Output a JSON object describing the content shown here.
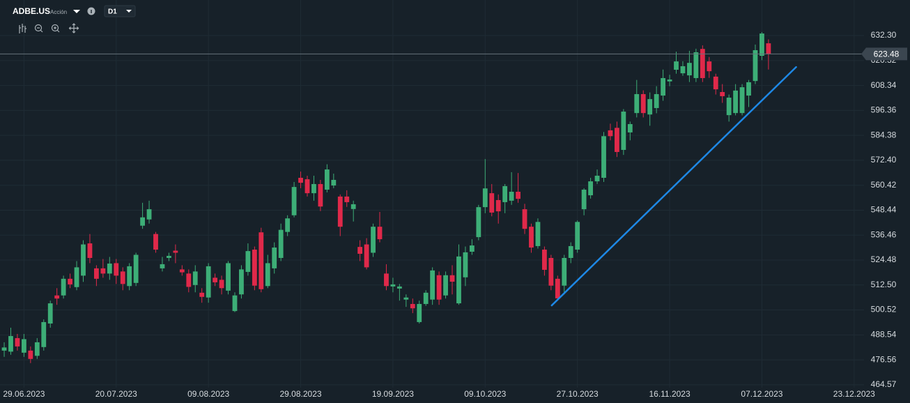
{
  "header": {
    "symbol": "ADBE.US",
    "kind": "Acción",
    "timeframe": "D1"
  },
  "chart_data": {
    "type": "candlestick",
    "categories": [
      null,
      null,
      null,
      "29.06.2023",
      null,
      null,
      null,
      null,
      null,
      null,
      null,
      null,
      null,
      null,
      null,
      null,
      null,
      "20.07.2023",
      null,
      null,
      null,
      null,
      null,
      null,
      null,
      null,
      null,
      null,
      null,
      null,
      null,
      "09.08.2023",
      null,
      null,
      null,
      null,
      null,
      null,
      null,
      null,
      null,
      null,
      null,
      null,
      null,
      "29.08.2023",
      null,
      null,
      null,
      null,
      null,
      null,
      null,
      null,
      null,
      null,
      null,
      null,
      null,
      "19.09.2023",
      null,
      null,
      null,
      null,
      null,
      null,
      null,
      null,
      null,
      null,
      null,
      null,
      null,
      "09.10.2023",
      null,
      null,
      null,
      null,
      null,
      null,
      null,
      null,
      null,
      null,
      null,
      null,
      null,
      "27.10.2023",
      null,
      null,
      null,
      null,
      null,
      null,
      null,
      null,
      null,
      null,
      null,
      null,
      null,
      "16.11.2023",
      null,
      null,
      null,
      null,
      null,
      null,
      null,
      null,
      null,
      null,
      null,
      null,
      null,
      "07.12.2023",
      null,
      null,
      null,
      null,
      null,
      null,
      null,
      null,
      null,
      null,
      null,
      null,
      null,
      "23.12.2023",
      null
    ],
    "open": [
      481,
      480.5,
      487,
      480,
      481,
      478.5,
      482.7,
      494,
      507.5,
      507.5,
      515.5,
      511.5,
      517,
      532.5,
      520.5,
      520.5,
      518,
      523,
      519,
      512,
      513.5,
      541,
      544,
      537,
      520.5,
      525.5,
      529,
      520,
      518,
      512.5,
      508.8,
      506.5,
      516,
      515,
      509.8,
      500,
      508,
      518.8,
      529.5,
      537.8,
      512,
      520.5,
      525.5,
      538,
      546,
      564,
      563.3,
      556.6,
      561,
      558.3,
      560.3,
      555,
      555,
      549,
      530.8,
      532,
      528,
      540.5,
      518,
      511.8,
      510.8,
      505.5,
      503.4,
      494.7,
      503.4,
      505.5,
      517.2,
      507.5,
      517.2,
      503.7,
      516.2,
      528.5,
      535.5,
      549.9,
      556.6,
      553.3,
      552.3,
      553,
      557.3,
      548.9,
      540.5,
      531.2,
      529.5,
      525.5,
      515.5,
      512.2,
      525.5,
      529.5,
      548.9,
      555.6,
      562.3,
      564,
      586.8,
      588,
      577.4,
      585.8,
      595.1,
      604.2,
      594.4,
      597.5,
      603.5,
      610.3,
      615.9,
      614.2,
      613.2,
      611.9,
      625.9,
      619.9,
      612.6,
      605.2,
      594.1,
      595.1,
      595.1,
      603.5,
      610.5,
      622.6,
      628.6,
      null,
      null,
      null,
      null,
      null,
      null,
      null,
      null,
      null,
      null,
      null,
      null,
      null,
      null
    ],
    "high": [
      485,
      492,
      489,
      489,
      483,
      487,
      496,
      505,
      511,
      517,
      518,
      524,
      534,
      537,
      522,
      525,
      526,
      525,
      521,
      523,
      528,
      552,
      553,
      538,
      526,
      528,
      532,
      522,
      520,
      522,
      511,
      523,
      518,
      517,
      524,
      509,
      522,
      532.5,
      531,
      540,
      527,
      533,
      542,
      546,
      562,
      567,
      565,
      565,
      563,
      570.5,
      566,
      556,
      558,
      553,
      534,
      535,
      542,
      547.6,
      522.5,
      516,
      513,
      508,
      506,
      505,
      510,
      521,
      519,
      519,
      522,
      532,
      531,
      534.5,
      551,
      573,
      561,
      556,
      561,
      566.7,
      566.3,
      551.5,
      542,
      544.5,
      531,
      527,
      517,
      527,
      533,
      543.5,
      559,
      564,
      568,
      586,
      590,
      591,
      597,
      591,
      611,
      606,
      605,
      608,
      616,
      613.5,
      624.6,
      620,
      625,
      626,
      627.6,
      622,
      614,
      609,
      604,
      609,
      609,
      611,
      628,
      634,
      630.5,
      null,
      null,
      null,
      null,
      null,
      null,
      null,
      null,
      null,
      null,
      null,
      null,
      null,
      null
    ],
    "low": [
      478,
      479,
      481,
      478,
      475,
      477,
      481,
      492,
      503,
      506,
      511,
      510,
      514,
      523,
      512,
      516,
      515,
      513,
      510,
      510,
      512,
      539.5,
      542,
      528,
      519,
      524,
      523,
      517,
      509,
      509,
      504,
      504,
      512,
      508,
      508,
      499.5,
      506,
      517,
      510,
      509,
      511,
      518,
      524,
      536,
      545,
      559,
      555,
      553,
      548,
      557,
      559,
      536,
      550,
      543,
      524,
      520,
      526,
      533,
      510,
      509,
      505,
      502,
      499,
      494,
      502.5,
      503,
      503,
      506,
      508,
      503,
      512,
      527,
      534,
      547,
      545.5,
      542,
      547,
      551,
      552,
      537,
      528,
      530,
      517,
      510,
      505,
      508,
      523,
      528,
      546,
      554,
      561,
      562,
      582,
      574,
      575,
      582,
      593,
      593,
      589,
      595,
      601,
      608,
      614,
      613,
      610,
      610,
      610,
      612,
      604,
      600,
      591,
      594,
      594,
      598,
      609,
      620.5,
      616,
      null,
      null,
      null,
      null,
      null,
      null,
      null,
      null,
      null,
      null,
      null,
      null,
      null,
      null
    ],
    "close": [
      482.5,
      488,
      483,
      486.5,
      477,
      485,
      494.7,
      503.7,
      506,
      515.5,
      512.8,
      521,
      532,
      525.5,
      515.5,
      518,
      522.8,
      517,
      513,
      521.5,
      527,
      545,
      548.9,
      529.5,
      522.5,
      526.5,
      528,
      518.6,
      511.6,
      519,
      506.8,
      521.5,
      513.8,
      511,
      523,
      507.5,
      520,
      528.8,
      512.2,
      510.5,
      523,
      530.5,
      539,
      544.5,
      559.6,
      561.6,
      556.6,
      561,
      550.2,
      568,
      563,
      540.5,
      552.3,
      551.3,
      527.5,
      521,
      540.5,
      534.5,
      512,
      512.8,
      511.8,
      506.5,
      501.3,
      503.4,
      508.8,
      519.5,
      505.5,
      517.2,
      514.1,
      526.2,
      528.2,
      531.5,
      549.9,
      558.9,
      547.3,
      547.9,
      560,
      557.3,
      553.9,
      539.5,
      530.5,
      542.8,
      519.8,
      512.2,
      506.1,
      525.5,
      531.2,
      542.8,
      558.3,
      562.3,
      565,
      584,
      584,
      576.4,
      595.8,
      589.8,
      604.2,
      595.1,
      601.8,
      604.2,
      611.9,
      611.2,
      619.9,
      617.6,
      619.2,
      624.3,
      611.9,
      615.2,
      606.5,
      603.2,
      602.5,
      605.9,
      607.5,
      609.9,
      625.3,
      633.3,
      623.48,
      null,
      null,
      null,
      null,
      null,
      null,
      null,
      null,
      null,
      null,
      null,
      null,
      null,
      null
    ],
    "up_color": "#3dae77",
    "down_color": "#e0294a",
    "ylim": [
      463.2,
      649.4
    ],
    "yticks": [
      464.57,
      476.56,
      488.54,
      500.52,
      {
        "value": 512.5,
        "label": "512.50"
      },
      524.48,
      536.46,
      548.44,
      560.42,
      {
        "value": 572.4,
        "label": "572.40"
      },
      584.38,
      596.36,
      608.34,
      620.32,
      {
        "value": 632.3,
        "label": "632.30"
      }
    ],
    "grid": true,
    "price_line": 623.48,
    "trendline": {
      "x": [
        83.1,
        120.2
      ],
      "y": [
        502.7,
        617.2
      ],
      "color": "#1e88e5"
    }
  }
}
